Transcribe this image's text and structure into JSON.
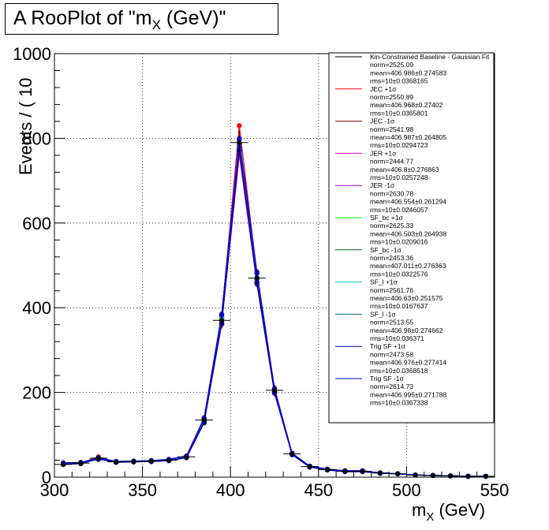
{
  "title": {
    "prefix": "A RooPlot of \"m",
    "sub": "X",
    "suffix": " (GeV)\""
  },
  "chart_data": {
    "type": "line",
    "xlabel": {
      "main": "m",
      "sub": "X",
      "unit": " (GeV)"
    },
    "ylabel": "Events / ( 10",
    "xlim": [
      300,
      550
    ],
    "ylim": [
      0,
      1000
    ],
    "xticks": [
      "300",
      "350",
      "400",
      "450",
      "500",
      "550"
    ],
    "yticks": [
      "0",
      "200",
      "400",
      "600",
      "800",
      "1000"
    ],
    "grid": true,
    "legend_position": "top-right",
    "data_x": [
      305,
      315,
      325,
      335,
      345,
      355,
      365,
      375,
      385,
      395,
      405,
      415,
      425,
      435,
      445,
      455,
      465,
      475,
      485,
      495,
      505,
      515,
      525,
      535,
      545
    ],
    "data_y": [
      30,
      33,
      45,
      36,
      37,
      38,
      40,
      48,
      135,
      370,
      790,
      470,
      205,
      55,
      25,
      18,
      14,
      14,
      10,
      8,
      5,
      4,
      3,
      2,
      2
    ],
    "series": [
      {
        "name": "Kin-Constrained Baseline - Gaussian Fit",
        "color": "#000000",
        "lines": [
          "norm=2525.09",
          "mean=406.986±0.274583",
          "rms=10±0.0368165"
        ],
        "data_y": [
          34,
          35,
          42,
          37,
          38,
          38,
          40,
          46,
          130,
          375,
          780,
          470,
          200,
          55,
          25,
          18,
          14,
          13,
          10,
          8,
          5,
          4,
          3,
          2,
          2
        ]
      },
      {
        "name": "JEC +1σ",
        "color": "#ff0000",
        "lines": [
          "norm=2550.89",
          "mean=406.968±0.27402",
          "rms=10±0.0365801"
        ],
        "data_y": [
          32,
          34,
          48,
          36,
          37,
          38,
          41,
          50,
          140,
          380,
          830,
          480,
          210,
          56,
          26,
          18,
          14,
          15,
          10,
          8,
          5,
          4,
          3,
          2,
          2
        ]
      },
      {
        "name": "JEC -1σ",
        "color": "#990000",
        "lines": [
          "norm=2541.98",
          "mean=406.987±0.264805",
          "rms=10±0.0294723"
        ],
        "data_y": [
          31,
          33,
          44,
          35,
          37,
          37,
          40,
          47,
          132,
          372,
          785,
          468,
          204,
          54,
          25,
          18,
          14,
          14,
          10,
          8,
          5,
          4,
          3,
          2,
          2
        ]
      },
      {
        "name": "JER +1σ",
        "color": "#ff00ff",
        "lines": [
          "norm=2444.77",
          "mean=406.8±0.276863",
          "rms=10±0.0257248"
        ],
        "data_y": [
          30,
          32,
          44,
          35,
          36,
          37,
          39,
          46,
          128,
          360,
          760,
          455,
          198,
          53,
          24,
          17,
          13,
          13,
          9,
          8,
          5,
          4,
          3,
          2,
          2
        ]
      },
      {
        "name": "JER -1σ",
        "color": "#9900cc",
        "lines": [
          "norm=2630.78",
          "mean=406.554±0.261294",
          "rms=10±0.0246057"
        ],
        "data_y": [
          33,
          34,
          46,
          37,
          38,
          39,
          42,
          50,
          140,
          385,
          800,
          485,
          210,
          57,
          26,
          19,
          15,
          15,
          10,
          8,
          5,
          4,
          3,
          2,
          2
        ]
      },
      {
        "name": "SF_bc +1σ",
        "color": "#00ff00",
        "lines": [
          "norm=2625.33",
          "mean=406.503±0.264938",
          "rms=10±0.0209016"
        ],
        "data_y": [
          33,
          34,
          46,
          37,
          38,
          39,
          42,
          49,
          138,
          382,
          795,
          480,
          208,
          56,
          26,
          19,
          15,
          14,
          10,
          8,
          5,
          4,
          3,
          2,
          2
        ]
      },
      {
        "name": "SF_bc -1σ",
        "color": "#006600",
        "lines": [
          "norm=2453.36",
          "mean=407.011±0.276363",
          "rms=10±0.0322576"
        ],
        "data_y": [
          30,
          32,
          43,
          35,
          36,
          37,
          39,
          46,
          128,
          362,
          770,
          458,
          200,
          53,
          24,
          17,
          13,
          13,
          9,
          8,
          5,
          4,
          3,
          2,
          2
        ]
      },
      {
        "name": "SF_l +1σ",
        "color": "#00cccc",
        "lines": [
          "norm=2561.76",
          "mean=406.63±0.251575",
          "rms=10±0.0167637"
        ],
        "data_y": [
          32,
          33,
          45,
          36,
          37,
          38,
          41,
          48,
          134,
          376,
          792,
          472,
          205,
          55,
          25,
          18,
          14,
          14,
          10,
          8,
          5,
          4,
          3,
          2,
          2
        ]
      },
      {
        "name": "SF_l -1σ",
        "color": "#006699",
        "lines": [
          "norm=2513.55",
          "mean=406.98±0.274662",
          "rms=10±0.036371"
        ],
        "data_y": [
          31,
          33,
          44,
          36,
          37,
          38,
          40,
          47,
          132,
          370,
          785,
          468,
          203,
          54,
          25,
          18,
          14,
          14,
          10,
          8,
          5,
          4,
          3,
          2,
          2
        ]
      },
      {
        "name": "Trig SF +1σ",
        "color": "#000099",
        "lines": [
          "norm=2473.58",
          "mean=406.976±0.277414",
          "rms=10±0.0368518"
        ],
        "data_y": [
          30,
          32,
          43,
          35,
          36,
          37,
          39,
          46,
          129,
          364,
          772,
          460,
          200,
          53,
          24,
          17,
          13,
          13,
          9,
          8,
          5,
          4,
          3,
          2,
          2
        ]
      },
      {
        "name": "Trig SF -1σ",
        "color": "#0000ff",
        "lines": [
          "norm=2614.73",
          "mean=406.995±0.271788",
          "rms=10±0.0367338"
        ],
        "data_y": [
          33,
          34,
          46,
          37,
          38,
          39,
          42,
          50,
          138,
          383,
          798,
          482,
          208,
          56,
          26,
          19,
          15,
          15,
          10,
          8,
          5,
          4,
          3,
          2,
          2
        ]
      }
    ]
  }
}
